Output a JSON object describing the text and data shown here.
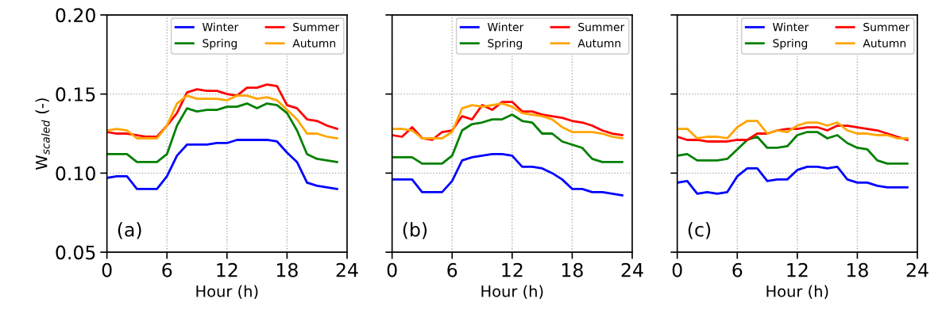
{
  "chart_data": [
    {
      "type": "line",
      "xlabel": "Hour (h)",
      "ylabel": "W$_{scaled}$ (-)",
      "annotations": [
        "(a)"
      ],
      "xlim": [
        0,
        24
      ],
      "xticks": [
        0,
        6,
        12,
        18,
        24
      ],
      "ylim": [
        0.05,
        0.2
      ],
      "yticks": [
        {
          "value": 0.05,
          "label": "0.05"
        },
        {
          "value": 0.1,
          "label": "0.10"
        },
        {
          "value": 0.15,
          "label": "0.15"
        },
        {
          "value": 0.2,
          "label": "0.20"
        }
      ],
      "grid": true,
      "legend": "top right",
      "x": [
        0,
        1,
        2,
        3,
        4,
        5,
        6,
        7,
        8,
        9,
        10,
        11,
        12,
        13,
        14,
        15,
        16,
        17,
        18,
        19,
        20,
        21,
        22,
        23
      ],
      "series": [
        {
          "name": "Winter",
          "color": "#0000ff",
          "values": [
            0.097,
            0.098,
            0.098,
            0.09,
            0.09,
            0.09,
            0.098,
            0.111,
            0.118,
            0.118,
            0.118,
            0.119,
            0.119,
            0.121,
            0.121,
            0.121,
            0.121,
            0.12,
            0.113,
            0.107,
            0.094,
            0.092,
            0.091,
            0.09
          ]
        },
        {
          "name": "Spring",
          "color": "#008000",
          "values": [
            0.112,
            0.112,
            0.112,
            0.107,
            0.107,
            0.107,
            0.112,
            0.13,
            0.141,
            0.139,
            0.14,
            0.14,
            0.142,
            0.142,
            0.144,
            0.141,
            0.144,
            0.143,
            0.138,
            0.127,
            0.112,
            0.109,
            0.108,
            0.107
          ]
        },
        {
          "name": "Summer",
          "color": "#ff0000",
          "values": [
            0.126,
            0.125,
            0.125,
            0.124,
            0.123,
            0.123,
            0.13,
            0.138,
            0.151,
            0.153,
            0.152,
            0.152,
            0.15,
            0.149,
            0.154,
            0.154,
            0.156,
            0.155,
            0.143,
            0.141,
            0.134,
            0.133,
            0.13,
            0.128
          ]
        },
        {
          "name": "Autumn",
          "color": "#ffa500",
          "values": [
            0.127,
            0.128,
            0.127,
            0.122,
            0.122,
            0.122,
            0.13,
            0.144,
            0.149,
            0.147,
            0.147,
            0.147,
            0.146,
            0.149,
            0.149,
            0.147,
            0.148,
            0.146,
            0.14,
            0.134,
            0.125,
            0.125,
            0.123,
            0.122
          ]
        }
      ]
    },
    {
      "type": "line",
      "xlabel": "Hour (h)",
      "annotations": [
        "(b)"
      ],
      "xlim": [
        0,
        24
      ],
      "xticks": [
        0,
        6,
        12,
        18,
        24
      ],
      "ylim": [
        0.05,
        0.2
      ],
      "yticks": [
        {
          "value": 0.05,
          "label": null
        },
        {
          "value": 0.1,
          "label": null
        },
        {
          "value": 0.15,
          "label": null
        },
        {
          "value": 0.2,
          "label": null
        }
      ],
      "tick_labels": "x",
      "grid": true,
      "legend": "top right",
      "x": [
        0,
        1,
        2,
        3,
        4,
        5,
        6,
        7,
        8,
        9,
        10,
        11,
        12,
        13,
        14,
        15,
        16,
        17,
        18,
        19,
        20,
        21,
        22,
        23
      ],
      "series": [
        {
          "name": "Winter",
          "color": "#0000ff",
          "values": [
            0.096,
            0.096,
            0.096,
            0.088,
            0.088,
            0.088,
            0.095,
            0.108,
            0.11,
            0.111,
            0.112,
            0.112,
            0.111,
            0.104,
            0.104,
            0.103,
            0.1,
            0.096,
            0.09,
            0.09,
            0.088,
            0.088,
            0.087,
            0.086
          ]
        },
        {
          "name": "Spring",
          "color": "#008000",
          "values": [
            0.11,
            0.11,
            0.11,
            0.106,
            0.106,
            0.106,
            0.111,
            0.127,
            0.131,
            0.132,
            0.134,
            0.134,
            0.137,
            0.133,
            0.132,
            0.125,
            0.125,
            0.12,
            0.118,
            0.116,
            0.109,
            0.107,
            0.107,
            0.107
          ]
        },
        {
          "name": "Summer",
          "color": "#ff0000",
          "values": [
            0.124,
            0.123,
            0.129,
            0.122,
            0.121,
            0.126,
            0.127,
            0.136,
            0.134,
            0.143,
            0.14,
            0.145,
            0.145,
            0.139,
            0.139,
            0.137,
            0.136,
            0.135,
            0.133,
            0.132,
            0.13,
            0.127,
            0.125,
            0.124
          ]
        },
        {
          "name": "Autumn",
          "color": "#ffa500",
          "values": [
            0.128,
            0.128,
            0.127,
            0.122,
            0.122,
            0.122,
            0.126,
            0.141,
            0.143,
            0.142,
            0.143,
            0.144,
            0.142,
            0.138,
            0.137,
            0.136,
            0.134,
            0.129,
            0.126,
            0.126,
            0.126,
            0.125,
            0.123,
            0.122
          ]
        }
      ]
    },
    {
      "type": "line",
      "xlabel": "Hour (h)",
      "annotations": [
        "(c)"
      ],
      "xlim": [
        0,
        24
      ],
      "xticks": [
        0,
        6,
        12,
        18,
        24
      ],
      "ylim": [
        0.05,
        0.2
      ],
      "yticks": [
        {
          "value": 0.05,
          "label": null
        },
        {
          "value": 0.1,
          "label": null
        },
        {
          "value": 0.15,
          "label": null
        },
        {
          "value": 0.2,
          "label": null
        }
      ],
      "tick_labels": "x",
      "grid": true,
      "legend": "top right",
      "x": [
        0,
        1,
        2,
        3,
        4,
        5,
        6,
        7,
        8,
        9,
        10,
        11,
        12,
        13,
        14,
        15,
        16,
        17,
        18,
        19,
        20,
        21,
        22,
        23
      ],
      "series": [
        {
          "name": "Winter",
          "color": "#0000ff",
          "values": [
            0.094,
            0.095,
            0.087,
            0.088,
            0.087,
            0.088,
            0.098,
            0.103,
            0.103,
            0.095,
            0.096,
            0.096,
            0.102,
            0.104,
            0.104,
            0.103,
            0.104,
            0.096,
            0.094,
            0.094,
            0.092,
            0.091,
            0.091,
            0.091
          ]
        },
        {
          "name": "Spring",
          "color": "#008000",
          "values": [
            0.111,
            0.112,
            0.108,
            0.108,
            0.108,
            0.109,
            0.115,
            0.121,
            0.123,
            0.116,
            0.116,
            0.117,
            0.124,
            0.126,
            0.126,
            0.122,
            0.124,
            0.119,
            0.116,
            0.115,
            0.108,
            0.106,
            0.106,
            0.106
          ]
        },
        {
          "name": "Summer",
          "color": "#ff0000",
          "values": [
            0.123,
            0.121,
            0.121,
            0.12,
            0.12,
            0.12,
            0.121,
            0.121,
            0.125,
            0.125,
            0.127,
            0.128,
            0.128,
            0.129,
            0.129,
            0.127,
            0.13,
            0.13,
            0.129,
            0.128,
            0.127,
            0.125,
            0.123,
            0.121
          ]
        },
        {
          "name": "Autumn",
          "color": "#ffa500",
          "values": [
            0.128,
            0.128,
            0.122,
            0.123,
            0.123,
            0.122,
            0.129,
            0.133,
            0.133,
            0.125,
            0.127,
            0.126,
            0.13,
            0.132,
            0.132,
            0.13,
            0.132,
            0.127,
            0.125,
            0.125,
            0.124,
            0.124,
            0.122,
            0.122
          ]
        }
      ]
    }
  ]
}
